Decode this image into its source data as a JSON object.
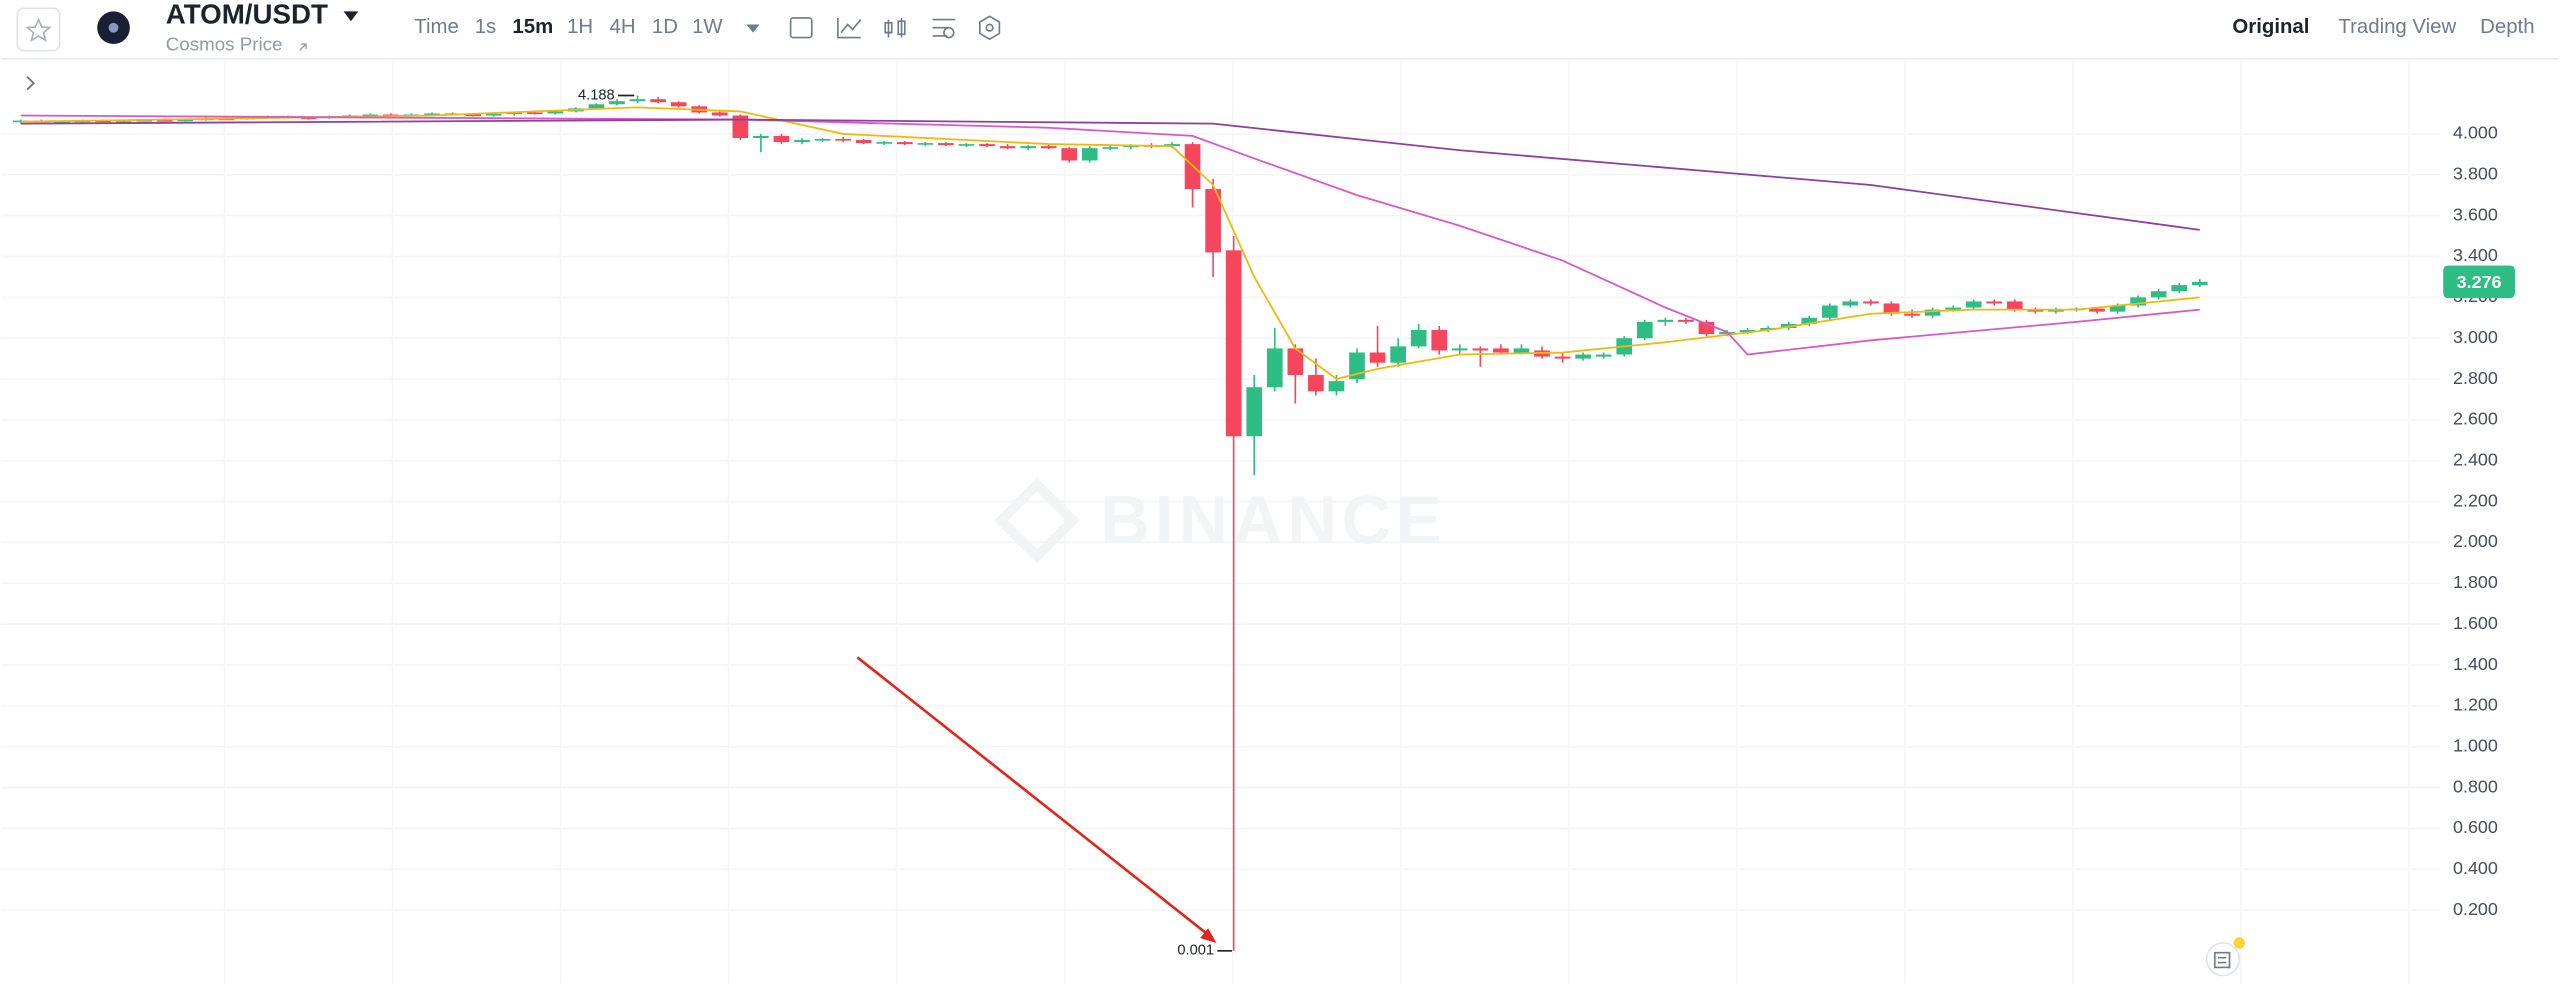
{
  "ui": {
    "pair": "ATOM/USDT",
    "subtitle": "Cosmos Price",
    "intervals": [
      "Time",
      "1s",
      "15m",
      "1H",
      "4H",
      "1D",
      "1W"
    ],
    "views": [
      "Original",
      "Trading View",
      "Depth"
    ],
    "watermark": "BINANCE"
  },
  "chart_data": {
    "type": "candlestick",
    "up_color": "#2ebd85",
    "down_color": "#f6465d",
    "ylim": [
      -0.16,
      4.36
    ],
    "yticks": [
      {
        "value": 0.2,
        "label": "0.200"
      },
      {
        "value": 0.4,
        "label": "0.400"
      },
      {
        "value": 0.6,
        "label": "0.600"
      },
      {
        "value": 0.8,
        "label": "0.800"
      },
      {
        "value": 1.0,
        "label": "1.000"
      },
      {
        "value": 1.2,
        "label": "1.200"
      },
      {
        "value": 1.4,
        "label": "1.400"
      },
      {
        "value": 1.6,
        "label": "1.600"
      },
      {
        "value": 1.8,
        "label": "1.800"
      },
      {
        "value": 2.0,
        "label": "2.000"
      },
      {
        "value": 2.2,
        "label": "2.200"
      },
      {
        "value": 2.4,
        "label": "2.400"
      },
      {
        "value": 2.6,
        "label": "2.600"
      },
      {
        "value": 2.8,
        "label": "2.800"
      },
      {
        "value": 3.0,
        "label": "3.000"
      },
      {
        "value": 3.2,
        "label": "3.200"
      },
      {
        "value": 3.4,
        "label": "3.400"
      },
      {
        "value": 3.6,
        "label": "3.600"
      },
      {
        "value": 3.8,
        "label": "3.800"
      },
      {
        "value": 4.0,
        "label": "4.000"
      }
    ],
    "grid": true,
    "open": [
      4.06,
      4.065,
      4.06,
      4.06,
      4.065,
      4.06,
      4.062,
      4.068,
      4.065,
      4.07,
      4.075,
      4.072,
      4.08,
      4.085,
      4.08,
      4.078,
      4.085,
      4.09,
      4.095,
      4.09,
      4.095,
      4.1,
      4.095,
      4.09,
      4.098,
      4.105,
      4.1,
      4.11,
      4.125,
      4.145,
      4.16,
      4.17,
      4.155,
      4.135,
      4.105,
      4.09,
      3.98,
      3.99,
      3.96,
      3.97,
      3.975,
      3.97,
      3.955,
      3.96,
      3.95,
      3.955,
      3.945,
      3.95,
      3.94,
      3.93,
      3.94,
      3.93,
      3.87,
      3.93,
      3.935,
      3.945,
      3.94,
      3.95,
      3.73,
      3.43,
      2.52,
      2.76,
      2.95,
      2.82,
      2.74,
      2.8,
      2.93,
      2.88,
      2.96,
      3.04,
      2.94,
      2.95,
      2.95,
      2.93,
      2.94,
      2.91,
      2.9,
      2.91,
      2.92,
      3.0,
      3.08,
      3.09,
      3.08,
      3.02,
      3.03,
      3.04,
      3.05,
      3.07,
      3.1,
      3.16,
      3.18,
      3.17,
      3.12,
      3.11,
      3.14,
      3.15,
      3.18,
      3.18,
      3.14,
      3.13,
      3.14,
      3.145,
      3.13,
      3.16,
      3.2,
      3.23,
      3.26
    ],
    "high": [
      4.07,
      4.07,
      4.065,
      4.07,
      4.07,
      4.065,
      4.07,
      4.075,
      4.075,
      4.08,
      4.08,
      4.085,
      4.09,
      4.09,
      4.085,
      4.09,
      4.095,
      4.1,
      4.1,
      4.1,
      4.105,
      4.105,
      4.1,
      4.1,
      4.11,
      4.11,
      4.115,
      4.13,
      4.15,
      4.17,
      4.188,
      4.18,
      4.16,
      4.14,
      4.11,
      4.095,
      4.0,
      4.0,
      3.98,
      3.98,
      3.985,
      3.975,
      3.965,
      3.965,
      3.96,
      3.96,
      3.955,
      3.955,
      3.95,
      3.945,
      3.95,
      3.935,
      3.94,
      3.945,
      3.95,
      3.955,
      3.96,
      3.96,
      3.78,
      3.5,
      2.82,
      3.05,
      2.97,
      2.9,
      2.82,
      2.95,
      3.06,
      3.0,
      3.07,
      3.06,
      2.97,
      2.96,
      2.97,
      2.97,
      2.96,
      2.93,
      2.93,
      2.93,
      3.01,
      3.09,
      3.1,
      3.1,
      3.09,
      3.04,
      3.05,
      3.06,
      3.08,
      3.11,
      3.17,
      3.19,
      3.19,
      3.18,
      3.14,
      3.15,
      3.16,
      3.19,
      3.19,
      3.19,
      3.15,
      3.15,
      3.15,
      3.15,
      3.17,
      3.21,
      3.24,
      3.27,
      3.29
    ],
    "low": [
      4.05,
      4.06,
      4.055,
      4.055,
      4.06,
      4.055,
      4.06,
      4.06,
      4.06,
      4.065,
      4.07,
      4.07,
      4.075,
      4.075,
      4.07,
      4.075,
      4.08,
      4.085,
      4.085,
      4.085,
      4.09,
      4.09,
      4.085,
      4.085,
      4.09,
      4.095,
      4.095,
      4.105,
      4.12,
      4.14,
      4.15,
      4.15,
      4.13,
      4.1,
      4.085,
      3.97,
      3.91,
      3.95,
      3.95,
      3.96,
      3.96,
      3.95,
      3.945,
      3.945,
      3.94,
      3.94,
      3.935,
      3.935,
      3.925,
      3.92,
      3.925,
      3.86,
      3.86,
      3.92,
      3.925,
      3.93,
      3.93,
      3.64,
      3.3,
      0.001,
      2.33,
      2.74,
      2.68,
      2.72,
      2.72,
      2.78,
      2.86,
      2.86,
      2.95,
      2.92,
      2.92,
      2.86,
      2.92,
      2.92,
      2.9,
      2.88,
      2.89,
      2.9,
      2.91,
      2.99,
      3.06,
      3.07,
      3.01,
      3.01,
      3.02,
      3.03,
      3.04,
      3.06,
      3.09,
      3.15,
      3.16,
      3.11,
      3.1,
      3.1,
      3.13,
      3.14,
      3.16,
      3.13,
      3.12,
      3.12,
      3.13,
      3.12,
      3.12,
      3.15,
      3.19,
      3.22,
      3.25
    ],
    "close": [
      4.065,
      4.06,
      4.06,
      4.065,
      4.06,
      4.062,
      4.068,
      4.065,
      4.07,
      4.075,
      4.072,
      4.08,
      4.085,
      4.08,
      4.078,
      4.085,
      4.09,
      4.095,
      4.09,
      4.095,
      4.1,
      4.095,
      4.09,
      4.098,
      4.105,
      4.1,
      4.11,
      4.125,
      4.145,
      4.16,
      4.17,
      4.155,
      4.135,
      4.105,
      4.09,
      3.98,
      3.99,
      3.96,
      3.97,
      3.975,
      3.97,
      3.955,
      3.96,
      3.95,
      3.955,
      3.945,
      3.95,
      3.94,
      3.93,
      3.94,
      3.93,
      3.87,
      3.93,
      3.935,
      3.945,
      3.94,
      3.95,
      3.73,
      3.42,
      2.52,
      2.76,
      2.95,
      2.82,
      2.74,
      2.79,
      2.93,
      2.88,
      2.96,
      3.04,
      2.94,
      2.95,
      2.94,
      2.93,
      2.95,
      2.91,
      2.9,
      2.92,
      2.92,
      3.0,
      3.08,
      3.09,
      3.08,
      3.02,
      3.03,
      3.04,
      3.05,
      3.07,
      3.1,
      3.16,
      3.18,
      3.17,
      3.12,
      3.11,
      3.14,
      3.15,
      3.18,
      3.17,
      3.14,
      3.13,
      3.14,
      3.145,
      3.13,
      3.16,
      3.2,
      3.23,
      3.26,
      3.276
    ],
    "lines": [
      {
        "color": "#f0b90b",
        "x": [
          0,
          20,
          30,
          35,
          40,
          50,
          56,
          58,
          60,
          62,
          64,
          66,
          70,
          75,
          80,
          85,
          90,
          95,
          100,
          106
        ],
        "values": [
          4.06,
          4.09,
          4.13,
          4.11,
          4.0,
          3.95,
          3.94,
          3.75,
          3.3,
          2.95,
          2.8,
          2.85,
          2.92,
          2.93,
          2.98,
          3.04,
          3.12,
          3.14,
          3.14,
          3.2
        ]
      },
      {
        "color": "#d957c8",
        "x": [
          0,
          35,
          50,
          57,
          60,
          65,
          70,
          75,
          80,
          83,
          84,
          90,
          100,
          106
        ],
        "values": [
          4.09,
          4.07,
          4.03,
          3.99,
          3.88,
          3.7,
          3.55,
          3.38,
          3.15,
          3.03,
          2.92,
          2.99,
          3.08,
          3.14
        ]
      },
      {
        "color": "#8e3fa0",
        "x": [
          0,
          35,
          58,
          70,
          90,
          106
        ],
        "values": [
          4.05,
          4.07,
          4.05,
          3.92,
          3.75,
          3.53
        ]
      }
    ]
  }
}
